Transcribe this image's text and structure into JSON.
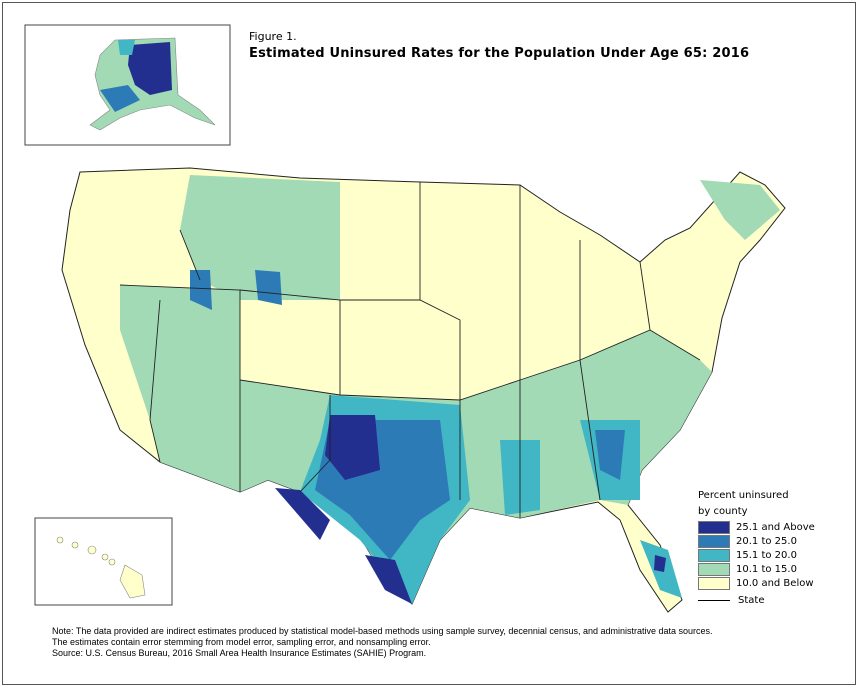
{
  "figure": {
    "label": "Figure 1.",
    "title": "Estimated Uninsured Rates for the Population Under Age 65: 2016"
  },
  "legend": {
    "title_line1": "Percent uninsured",
    "title_line2": "by county",
    "items": [
      {
        "label": "25.1 and Above",
        "color": "#232f8e"
      },
      {
        "label": "20.1 to 25.0",
        "color": "#2c7bb6"
      },
      {
        "label": "15.1 to 20.0",
        "color": "#41b6c4"
      },
      {
        "label": "10.1 to 15.0",
        "color": "#a1dab4"
      },
      {
        "label": "10.0 and Below",
        "color": "#ffffcc"
      }
    ],
    "state_label": "State"
  },
  "notes": {
    "line1": "Note: The data provided are indirect estimates produced by statistical model-based methods using sample survey, decennial census, and administrative data sources.",
    "line2": "The estimates contain error stemming from model error, sampling error, and nonsampling error.",
    "line3": "Source: U.S. Census Bureau, 2016 Small Area Health Insurance Estimates (SAHIE) Program."
  }
}
